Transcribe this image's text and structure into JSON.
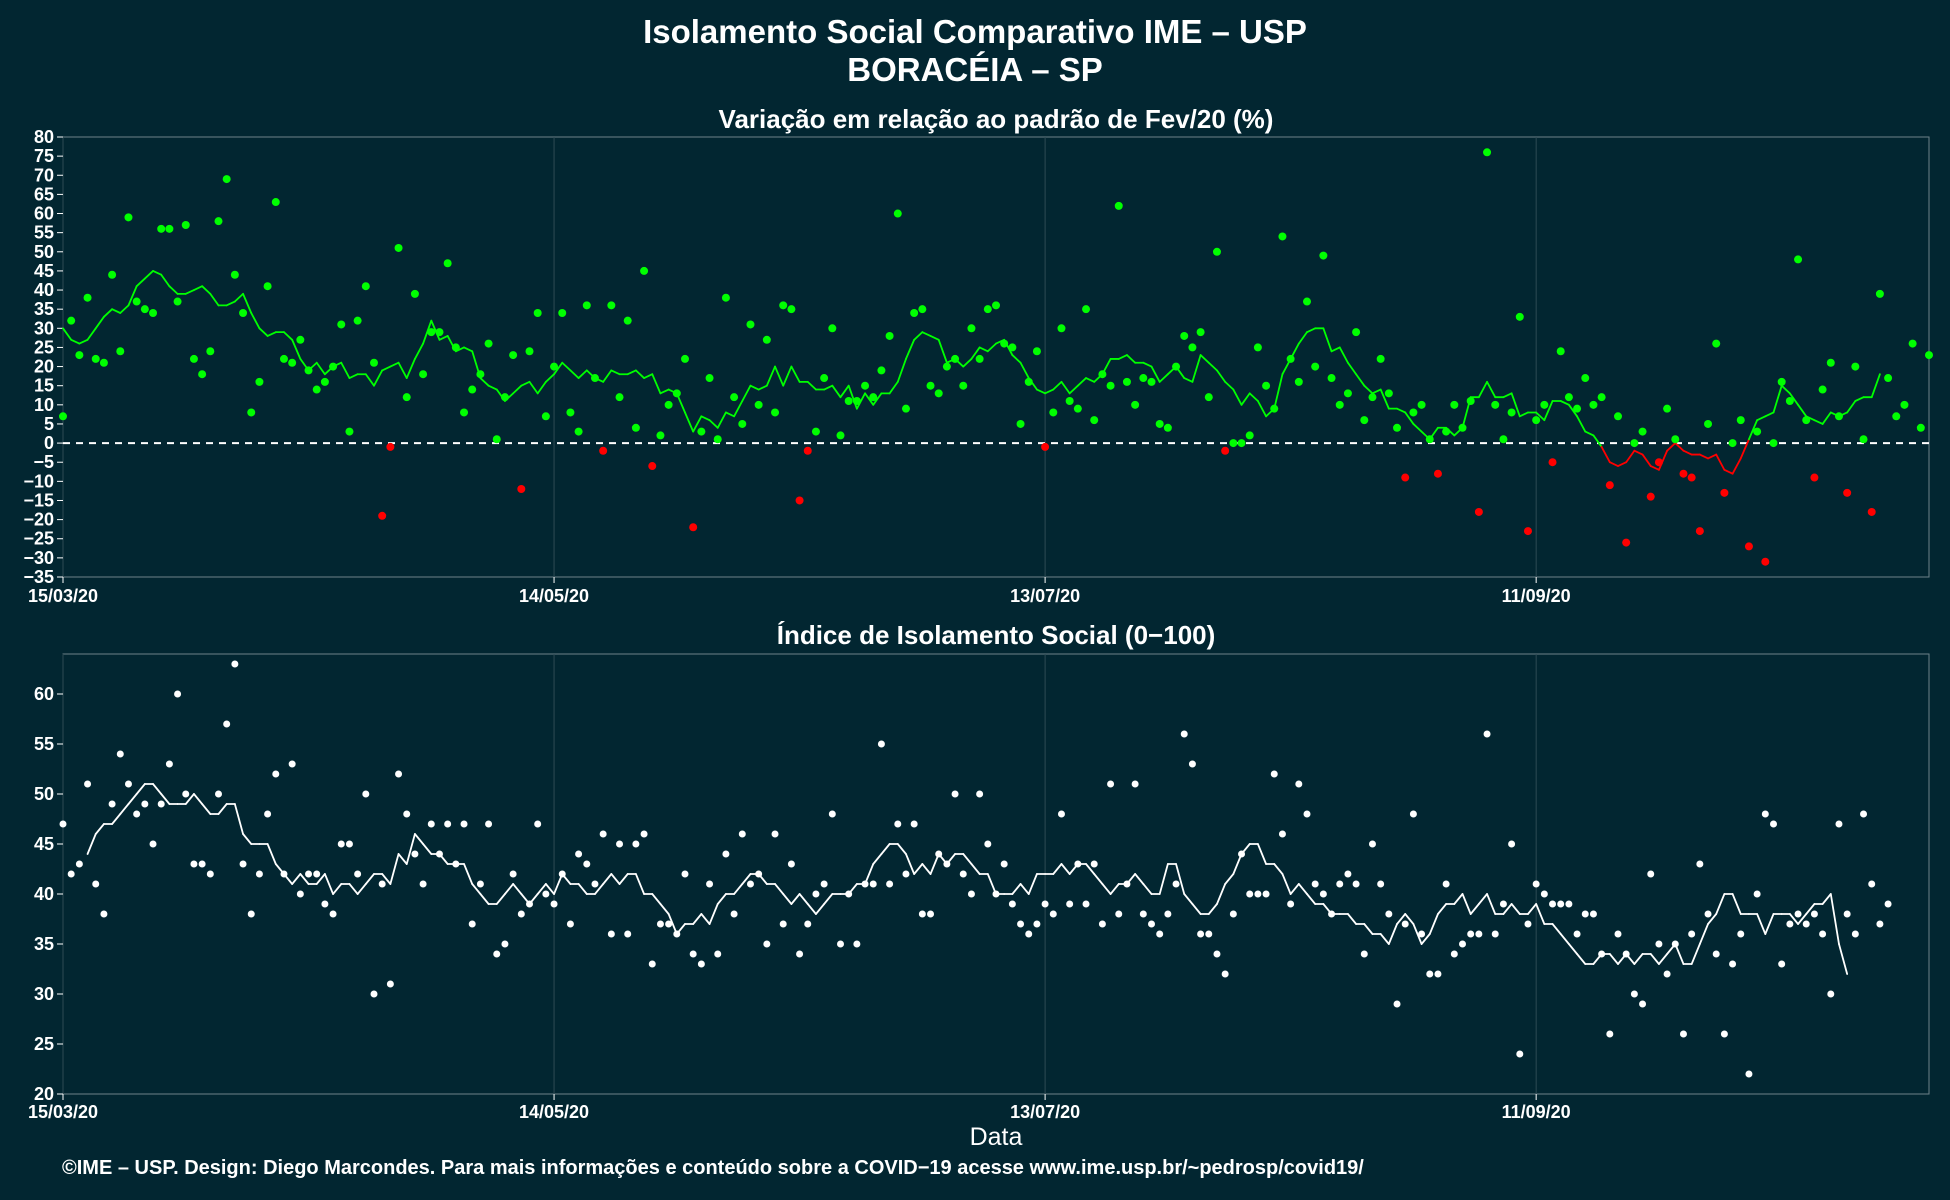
{
  "header": {
    "title": "Isolamento Social Comparativo IME – USP",
    "subtitle": "BORACÉIA – SP"
  },
  "footer": {
    "text": "©IME – USP. Design: Diego Marcondes. Para mais informações e conteúdo sobre a COVID−19 acesse www.ime.usp.br/~pedrosp/covid19/"
  },
  "colors": {
    "background": "#022631",
    "positive": "#00ff00",
    "negative": "#ff0000",
    "index": "#ffffff",
    "grid": "#2e4a54"
  },
  "chart_data": [
    {
      "type": "scatter",
      "title": "Variação em relação ao padrão de Fev/20 (%)",
      "xlabel": "",
      "x_tick_labels": [
        "15/03/20",
        "14/05/20",
        "13/07/20",
        "11/09/20"
      ],
      "x_tick_days": [
        0,
        60,
        120,
        180
      ],
      "xlim_days": [
        0,
        228
      ],
      "ylim": [
        -35,
        80
      ],
      "y_ticks": [
        80,
        75,
        70,
        65,
        60,
        55,
        50,
        45,
        40,
        35,
        30,
        25,
        20,
        15,
        10,
        5,
        0,
        -5,
        -10,
        -15,
        -20,
        -25,
        -30,
        -35
      ],
      "reference_line": 0,
      "values": [
        7,
        32,
        23,
        38,
        22,
        21,
        44,
        24,
        59,
        37,
        35,
        34,
        56,
        56,
        37,
        57,
        22,
        18,
        24,
        58,
        69,
        44,
        34,
        8,
        16,
        41,
        63,
        22,
        21,
        27,
        19,
        14,
        16,
        20,
        31,
        3,
        32,
        41,
        21,
        -19,
        -1,
        51,
        12,
        39,
        18,
        29,
        29,
        47,
        25,
        8,
        14,
        18,
        26,
        1,
        12,
        23,
        -12,
        24,
        34,
        7,
        20,
        34,
        8,
        3,
        36,
        17,
        -2,
        36,
        12,
        32,
        4,
        45,
        -6,
        2,
        10,
        13,
        22,
        -22,
        3,
        17,
        1,
        38,
        12,
        5,
        31,
        10,
        27,
        8,
        36,
        35,
        -15,
        -2,
        3,
        17,
        30,
        2,
        11,
        11,
        15,
        12,
        19,
        28,
        60,
        9,
        34,
        35,
        15,
        13,
        20,
        22,
        15,
        30,
        22,
        35,
        36,
        26,
        25,
        5,
        16,
        24,
        -1,
        8,
        30,
        11,
        9,
        35,
        6,
        18,
        15,
        62,
        16,
        10,
        17,
        16,
        5,
        4,
        20,
        28,
        25,
        29,
        12,
        50,
        -2,
        0,
        0,
        2,
        25,
        15,
        9,
        54,
        22,
        16,
        37,
        20,
        49,
        17,
        10,
        13,
        29,
        6,
        12,
        22,
        13,
        4,
        -9,
        8,
        10,
        1,
        -8,
        3,
        10,
        4,
        11,
        -18,
        76,
        10,
        1,
        8,
        33,
        -23,
        6,
        10,
        -5,
        24,
        12,
        9,
        17,
        10,
        12,
        -11,
        7,
        -26,
        0,
        3,
        -14,
        -5,
        9,
        1,
        -8,
        -9,
        -23,
        5,
        26,
        -13,
        0,
        6,
        -27,
        3,
        -31,
        0,
        16,
        11,
        48,
        6,
        -9,
        14,
        21,
        7,
        -13,
        20,
        1,
        -18,
        39,
        17,
        7,
        10,
        26,
        4,
        23
      ],
      "moving_average": [
        30,
        27,
        26,
        27,
        30,
        33,
        35,
        34,
        36,
        41,
        43,
        45,
        44,
        41,
        39,
        39,
        40,
        41,
        39,
        36,
        36,
        37,
        39,
        34,
        30,
        28,
        29,
        29,
        27,
        22,
        19,
        21,
        18,
        20,
        21,
        17,
        18,
        18,
        15,
        19,
        20,
        21,
        17,
        22,
        26,
        32,
        27,
        28,
        24,
        25,
        24,
        17,
        15,
        14,
        11,
        13,
        15,
        16,
        13,
        16,
        18,
        21,
        19,
        17,
        19,
        17,
        16,
        19,
        18,
        18,
        19,
        17,
        18,
        13,
        14,
        13,
        8,
        3,
        7,
        6,
        4,
        8,
        7,
        11,
        15,
        14,
        15,
        20,
        15,
        20,
        16,
        16,
        14,
        14,
        15,
        12,
        15,
        9,
        13,
        10,
        13,
        13,
        16,
        22,
        27,
        29,
        28,
        27,
        21,
        22,
        20,
        22,
        25,
        24,
        26,
        27,
        23,
        21,
        17,
        14,
        13,
        14,
        16,
        13,
        15,
        17,
        16,
        18,
        22,
        22,
        23,
        21,
        21,
        20,
        16,
        18,
        20,
        17,
        16,
        23,
        21,
        19,
        16,
        14,
        10,
        13,
        11,
        7,
        9,
        18,
        22,
        26,
        29,
        30,
        30,
        24,
        25,
        21,
        18,
        15,
        13,
        14,
        9,
        9,
        8,
        5,
        3,
        1,
        4,
        4,
        2,
        4,
        12,
        12,
        16,
        12,
        12,
        13,
        7,
        8,
        8,
        6,
        11,
        11,
        10,
        7,
        3,
        2,
        -1,
        -5,
        -6,
        -5,
        -2,
        -3,
        -6,
        -7,
        -2,
        0,
        -2,
        -3,
        -3,
        -4,
        -3,
        -7,
        -8,
        -4,
        1,
        6,
        7,
        8,
        15,
        13,
        10,
        7,
        6,
        5,
        8,
        7,
        8,
        11,
        12,
        12,
        18
      ]
    },
    {
      "type": "scatter",
      "title": "Índice de Isolamento Social (0−100)",
      "xlabel": "Data",
      "x_tick_labels": [
        "15/03/20",
        "14/05/20",
        "13/07/20",
        "11/09/20"
      ],
      "x_tick_days": [
        0,
        60,
        120,
        180
      ],
      "xlim_days": [
        0,
        228
      ],
      "ylim": [
        20,
        64
      ],
      "y_ticks": [
        60,
        55,
        50,
        45,
        40,
        35,
        30,
        25,
        20
      ],
      "values": [
        47,
        42,
        43,
        51,
        41,
        38,
        49,
        54,
        51,
        48,
        49,
        45,
        49,
        53,
        60,
        50,
        43,
        43,
        42,
        50,
        57,
        63,
        43,
        38,
        42,
        48,
        52,
        42,
        53,
        40,
        42,
        42,
        39,
        38,
        45,
        45,
        42,
        50,
        30,
        41,
        31,
        52,
        48,
        44,
        41,
        47,
        44,
        47,
        43,
        47,
        37,
        41,
        47,
        34,
        35,
        42,
        38,
        39,
        47,
        40,
        39,
        42,
        37,
        44,
        43,
        41,
        46,
        36,
        45,
        36,
        45,
        46,
        33,
        37,
        37,
        36,
        42,
        34,
        33,
        41,
        34,
        44,
        38,
        46,
        41,
        42,
        35,
        46,
        37,
        43,
        34,
        37,
        40,
        41,
        48,
        35,
        40,
        35,
        41,
        41,
        55,
        41,
        47,
        42,
        47,
        38,
        38,
        44,
        43,
        50,
        42,
        40,
        50,
        45,
        40,
        43,
        39,
        37,
        36,
        37,
        39,
        38,
        48,
        39,
        43,
        39,
        43,
        37,
        51,
        38,
        41,
        51,
        38,
        37,
        36,
        38,
        41,
        56,
        53,
        36,
        36,
        34,
        32,
        38,
        44,
        40,
        40,
        40,
        52,
        46,
        39,
        51,
        48,
        41,
        40,
        38,
        41,
        42,
        41,
        34,
        45,
        41,
        38,
        29,
        37,
        48,
        36,
        32,
        32,
        41,
        34,
        35,
        36,
        36,
        56,
        36,
        39,
        45,
        24,
        37,
        41,
        40,
        39,
        39,
        39,
        36,
        38,
        38,
        34,
        26,
        36,
        34,
        30,
        29,
        42,
        35,
        32,
        35,
        26,
        36,
        43,
        38,
        34,
        26,
        33,
        36,
        22,
        40,
        48,
        47,
        33,
        37,
        38,
        37,
        38,
        36,
        30,
        47,
        38,
        36,
        48,
        41,
        37,
        39
      ],
      "moving_average": [
        null,
        null,
        null,
        44,
        46,
        47,
        47,
        48,
        49,
        50,
        51,
        51,
        50,
        49,
        49,
        49,
        50,
        49,
        48,
        48,
        49,
        49,
        46,
        45,
        45,
        45,
        43,
        42,
        41,
        42,
        41,
        41,
        42,
        40,
        41,
        41,
        40,
        41,
        42,
        42,
        41,
        44,
        43,
        46,
        45,
        44,
        44,
        43,
        43,
        43,
        41,
        40,
        39,
        39,
        40,
        41,
        40,
        39,
        40,
        41,
        40,
        42,
        41,
        41,
        40,
        40,
        41,
        42,
        41,
        42,
        42,
        40,
        40,
        39,
        38,
        36,
        37,
        37,
        38,
        37,
        39,
        40,
        40,
        41,
        42,
        42,
        41,
        41,
        40,
        39,
        40,
        39,
        38,
        39,
        40,
        40,
        40,
        41,
        41,
        43,
        44,
        45,
        45,
        44,
        42,
        43,
        42,
        44,
        43,
        44,
        44,
        43,
        42,
        42,
        40,
        40,
        40,
        41,
        40,
        42,
        42,
        42,
        43,
        42,
        43,
        43,
        42,
        41,
        40,
        41,
        41,
        42,
        41,
        40,
        40,
        43,
        43,
        40,
        39,
        38,
        38,
        39,
        41,
        42,
        44,
        45,
        45,
        43,
        43,
        42,
        40,
        41,
        40,
        39,
        39,
        38,
        38,
        38,
        37,
        37,
        36,
        36,
        35,
        37,
        38,
        37,
        35,
        36,
        38,
        39,
        39,
        40,
        38,
        39,
        40,
        38,
        38,
        39,
        38,
        38,
        39,
        37,
        37,
        36,
        35,
        34,
        33,
        33,
        34,
        34,
        33,
        34,
        33,
        34,
        34,
        33,
        34,
        35,
        33,
        33,
        35,
        37,
        38,
        40,
        40,
        38,
        38,
        38,
        36,
        38,
        38,
        38,
        37,
        38,
        39,
        39,
        40,
        35,
        32
      ]
    }
  ]
}
